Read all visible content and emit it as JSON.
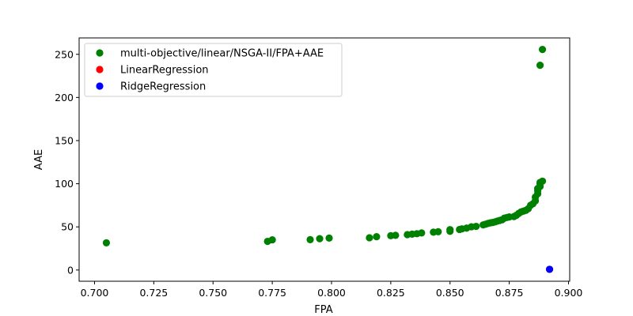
{
  "chart_data": {
    "type": "scatter",
    "xlabel": "FPA",
    "ylabel": "AAE",
    "xlim": [
      0.6935,
      0.9005
    ],
    "ylim": [
      -13,
      269
    ],
    "x_ticks": [
      "0.700",
      "0.725",
      "0.750",
      "0.775",
      "0.800",
      "0.825",
      "0.850",
      "0.875",
      "0.900"
    ],
    "y_ticks": [
      "0",
      "50",
      "100",
      "150",
      "200",
      "250"
    ],
    "grid": false,
    "legend_position": "upper-left",
    "series": [
      {
        "name": "multi-objective/linear/NSGA-II/FPA+AAE",
        "color": "#008000",
        "points": [
          [
            0.705,
            31.5
          ],
          [
            0.773,
            33.2
          ],
          [
            0.775,
            35.0
          ],
          [
            0.791,
            35.2
          ],
          [
            0.795,
            36.3
          ],
          [
            0.799,
            37.0
          ],
          [
            0.816,
            37.4
          ],
          [
            0.819,
            38.6
          ],
          [
            0.825,
            39.8
          ],
          [
            0.827,
            40.2
          ],
          [
            0.832,
            41.0
          ],
          [
            0.834,
            41.6
          ],
          [
            0.836,
            42.1
          ],
          [
            0.838,
            43.0
          ],
          [
            0.843,
            43.9
          ],
          [
            0.845,
            44.4
          ],
          [
            0.85,
            44.9
          ],
          [
            0.85,
            46.8
          ],
          [
            0.854,
            47.0
          ],
          [
            0.855,
            47.7
          ],
          [
            0.857,
            48.6
          ],
          [
            0.859,
            50.1
          ],
          [
            0.861,
            50.6
          ],
          [
            0.864,
            52.3
          ],
          [
            0.865,
            53.1
          ],
          [
            0.866,
            54.0
          ],
          [
            0.867,
            54.7
          ],
          [
            0.868,
            55.1
          ],
          [
            0.869,
            55.8
          ],
          [
            0.87,
            56.7
          ],
          [
            0.871,
            57.5
          ],
          [
            0.872,
            58.3
          ],
          [
            0.873,
            60.2
          ],
          [
            0.874,
            60.9
          ],
          [
            0.875,
            61.5
          ],
          [
            0.877,
            62.0
          ],
          [
            0.878,
            63.5
          ],
          [
            0.879,
            65.6
          ],
          [
            0.88,
            67.4
          ],
          [
            0.881,
            68.3
          ],
          [
            0.882,
            69.2
          ],
          [
            0.883,
            71.0
          ],
          [
            0.884,
            75.0
          ],
          [
            0.885,
            76.8
          ],
          [
            0.886,
            80.2
          ],
          [
            0.886,
            84.5
          ],
          [
            0.887,
            88.4
          ],
          [
            0.887,
            92.0
          ],
          [
            0.887,
            94.5
          ],
          [
            0.888,
            96.9
          ],
          [
            0.888,
            100.0
          ],
          [
            0.888,
            101.5
          ],
          [
            0.889,
            103.0
          ],
          [
            0.888,
            237.3
          ],
          [
            0.889,
            255.6
          ]
        ]
      },
      {
        "name": "LinearRegression",
        "color": "#ff0000",
        "points": [
          [
            0.892,
            0.8
          ]
        ]
      },
      {
        "name": "RidgeRegression",
        "color": "#0000ff",
        "points": [
          [
            0.892,
            0.8
          ]
        ]
      }
    ]
  }
}
